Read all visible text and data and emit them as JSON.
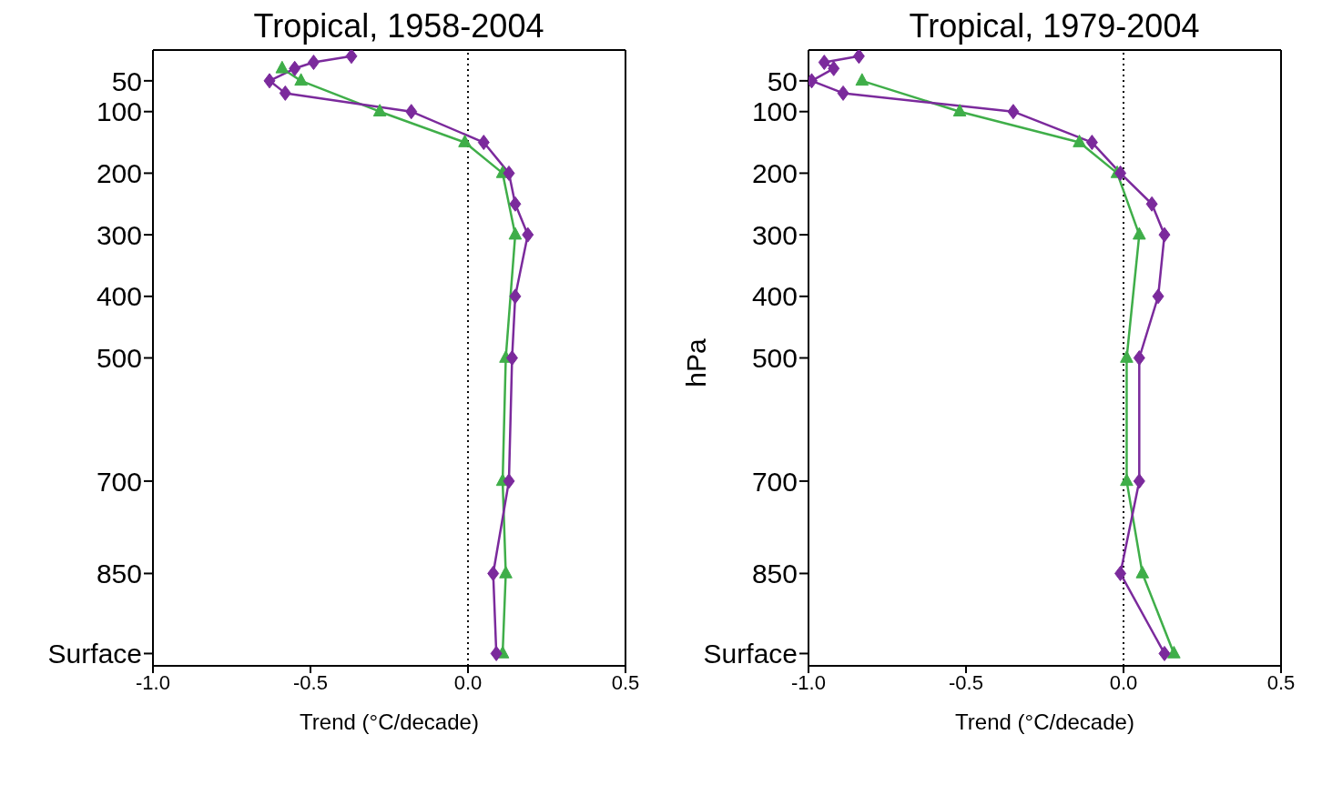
{
  "chart_data": [
    {
      "type": "line",
      "title": "Tropical, 1958-2004",
      "xlabel": "Trend (°C/decade)",
      "grid": false,
      "legend": false,
      "line_style": "solid",
      "xlim": [
        -1.0,
        0.5
      ],
      "xticks": [
        {
          "value": -1.0,
          "label": "-1.0"
        },
        {
          "value": -0.5,
          "label": "-0.5"
        },
        {
          "value": 0,
          "label": "0.0"
        },
        {
          "value": 0.5,
          "label": "0.5"
        }
      ],
      "ylim": [
        1000,
        0
      ],
      "yticks": [
        50,
        100,
        200,
        300,
        400,
        500,
        700,
        850,
        {
          "value": 980,
          "label": "Surface"
        }
      ],
      "ref_lines": [
        {
          "axis": "x",
          "value": 0,
          "color": "#000000",
          "line_style": "dotted"
        }
      ],
      "series": [
        {
          "color": "#7b2a9c",
          "marker": "diamond",
          "x": [
            -0.37,
            -0.49,
            -0.55,
            -0.63,
            -0.58,
            -0.18,
            0.05,
            0.13,
            0.15,
            0.19,
            0.15,
            0.14,
            0.13,
            0.08,
            0.09
          ],
          "values": [
            10,
            20,
            30,
            50,
            70,
            100,
            150,
            200,
            250,
            300,
            400,
            500,
            700,
            850,
            980
          ]
        },
        {
          "color": "#3fae49",
          "marker": "triangle",
          "x": [
            -0.59,
            -0.53,
            -0.28,
            -0.01,
            0.11,
            0.15,
            0.12,
            0.11,
            0.12,
            0.11
          ],
          "values": [
            30,
            50,
            100,
            150,
            200,
            300,
            500,
            700,
            850,
            980
          ]
        }
      ]
    },
    {
      "type": "line",
      "title": "Tropical, 1979-2004",
      "xlabel": "Trend (°C/decade)",
      "ylabel": "hPa",
      "grid": false,
      "legend": false,
      "line_style": "solid",
      "xlim": [
        -1.0,
        0.5
      ],
      "xticks": [
        {
          "value": -1.0,
          "label": "-1.0"
        },
        {
          "value": -0.5,
          "label": "-0.5"
        },
        {
          "value": 0,
          "label": "0.0"
        },
        {
          "value": 0.5,
          "label": "0.5"
        }
      ],
      "ylim": [
        1000,
        0
      ],
      "yticks": [
        50,
        100,
        200,
        300,
        400,
        500,
        700,
        850,
        {
          "value": 980,
          "label": "Surface"
        }
      ],
      "ref_lines": [
        {
          "axis": "x",
          "value": 0,
          "color": "#000000",
          "line_style": "dotted"
        }
      ],
      "series": [
        {
          "color": "#7b2a9c",
          "marker": "diamond",
          "x": [
            -0.84,
            -0.95,
            -0.92,
            -0.99,
            -0.89,
            -0.35,
            -0.1,
            -0.01,
            0.09,
            0.13,
            0.11,
            0.05,
            0.05,
            -0.01,
            0.13
          ],
          "values": [
            10,
            20,
            30,
            50,
            70,
            100,
            150,
            200,
            250,
            300,
            400,
            500,
            700,
            850,
            980
          ]
        },
        {
          "color": "#3fae49",
          "marker": "triangle",
          "x": [
            -0.83,
            -0.52,
            -0.14,
            -0.02,
            0.05,
            0.01,
            0.01,
            0.06,
            0.16
          ],
          "values": [
            50,
            100,
            150,
            200,
            300,
            500,
            700,
            850,
            980
          ]
        }
      ]
    }
  ]
}
